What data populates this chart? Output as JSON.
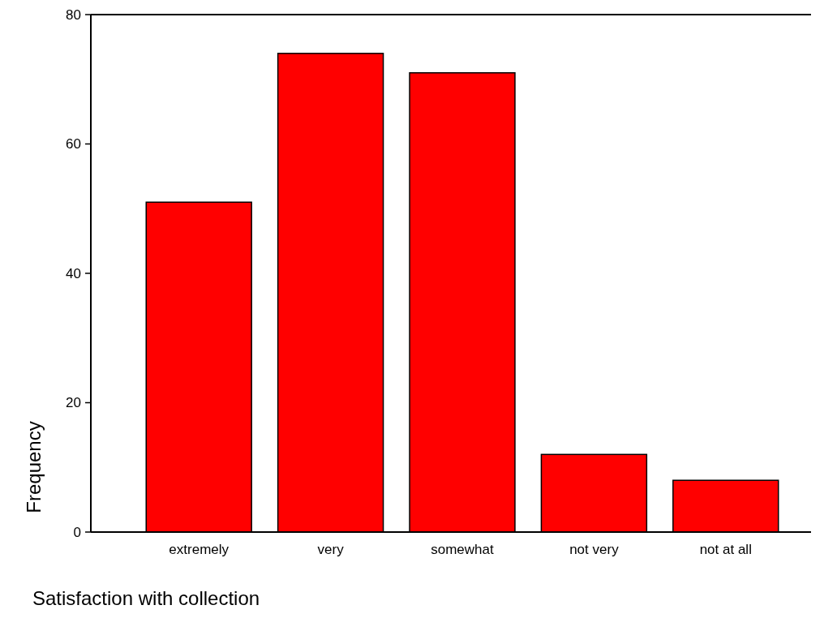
{
  "chart_data": {
    "type": "bar",
    "xlabel": "Satisfaction with collection",
    "ylabel": "Frequency",
    "categories": [
      "extremely",
      "very",
      "somewhat",
      "not very",
      "not at all"
    ],
    "values": [
      51,
      74,
      71,
      12,
      8
    ],
    "color": "#ff0000",
    "ylim": [
      0,
      80
    ],
    "yticks": [
      0,
      20,
      40,
      60,
      80
    ],
    "grid": false
  }
}
